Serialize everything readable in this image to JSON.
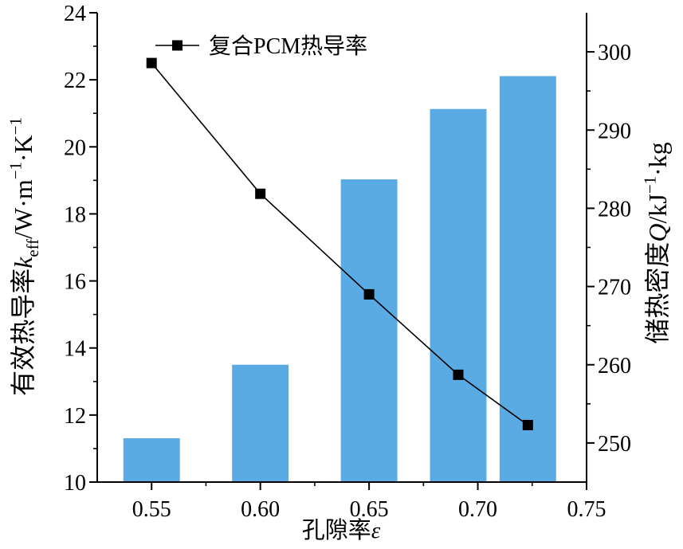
{
  "chart_data": {
    "type": "bar",
    "x": [
      0.55,
      0.6,
      0.65,
      0.691,
      0.723
    ],
    "xlabel": [
      {
        "text": "孔隙率"
      },
      {
        "text": "ε",
        "style": "italic"
      }
    ],
    "xlim": [
      0.525,
      0.75
    ],
    "xticks": [
      0.55,
      0.6,
      0.65,
      0.7,
      0.75
    ],
    "xtick_labels": [
      "0.55",
      "0.60",
      "0.65",
      "0.70",
      "0.75"
    ],
    "y_left": {
      "label": [
        {
          "text": "有效热导率"
        },
        {
          "text": "k",
          "style": "italic"
        },
        {
          "text": "eff",
          "style": "sub"
        },
        {
          "text": "/W·m"
        },
        {
          "text": "−1",
          "style": "sup"
        },
        {
          "text": "·K"
        },
        {
          "text": "−1",
          "style": "sup"
        }
      ],
      "ylim": [
        10,
        24
      ],
      "ticks": [
        10,
        12,
        14,
        16,
        18,
        20,
        22,
        24
      ],
      "tick_labels": [
        "10",
        "12",
        "14",
        "16",
        "18",
        "20",
        "22",
        "24"
      ]
    },
    "y_right": {
      "label": [
        {
          "text": "储热密度"
        },
        {
          "text": "Q",
          "style": "italic"
        },
        {
          "text": "/kJ"
        },
        {
          "text": "−1",
          "style": "sup"
        },
        {
          "text": "·kg"
        }
      ],
      "ylim": [
        245,
        305
      ],
      "ticks": [
        250,
        260,
        270,
        280,
        290,
        300
      ],
      "tick_labels": [
        "250",
        "260",
        "270",
        "280",
        "290",
        "300"
      ]
    },
    "series": [
      {
        "name": "复合PCM热导率",
        "type": "line",
        "axis": "left",
        "marker": "square",
        "color": "#000000",
        "values": [
          22.5,
          18.6,
          15.6,
          13.2,
          11.7
        ]
      },
      {
        "type": "bar",
        "axis": "right",
        "color": "#5aaae3",
        "values": [
          250.6,
          260.0,
          283.7,
          292.7,
          296.9
        ]
      }
    ],
    "legend": "top-left",
    "grid": false
  }
}
